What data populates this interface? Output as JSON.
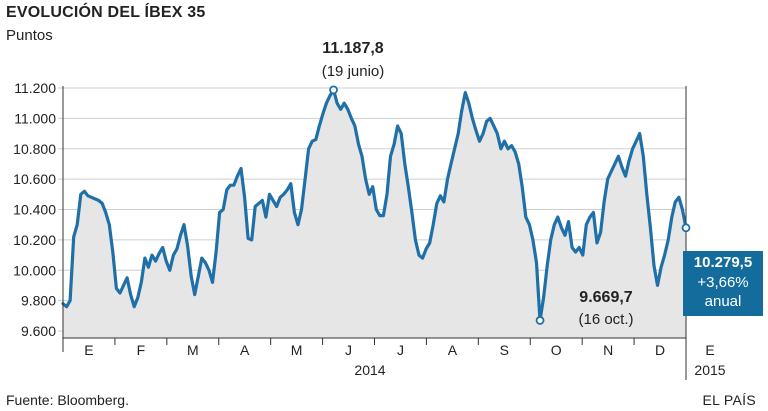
{
  "header": {
    "title": "EVOLUCIÓN DEL ÍBEX 35",
    "subtitle": "Puntos"
  },
  "footer": {
    "source": "Fuente: Bloomberg.",
    "credit": "EL PAÍS"
  },
  "colors": {
    "line": "#1f6fa8",
    "area": "#e6e6e6",
    "badge": "#136c9c",
    "grid": "#cfcfcf"
  },
  "chart_data": {
    "type": "area",
    "title": "EVOLUCIÓN DEL ÍBEX 35",
    "subtitle": "Puntos",
    "ylim": [
      9600,
      11200
    ],
    "yticks": [
      "9.600",
      "9.800",
      "10.000",
      "10.200",
      "10.400",
      "10.600",
      "10.800",
      "11.000",
      "11.200"
    ],
    "ytick_values": [
      9600,
      9800,
      10000,
      10200,
      10400,
      10600,
      10800,
      11000,
      11200
    ],
    "xticks": [
      "E",
      "F",
      "M",
      "A",
      "M",
      "J",
      "J",
      "A",
      "S",
      "O",
      "N",
      "D",
      "E"
    ],
    "year_labels": [
      "2014",
      "2015"
    ],
    "grid": true,
    "series": [
      {
        "values": [
          9780,
          9760,
          9800,
          10220,
          10300,
          10500,
          10520,
          10490,
          10480,
          10470,
          10460,
          10440,
          10380,
          10300,
          10120,
          9880,
          9850,
          9900,
          9950,
          9840,
          9760,
          9820,
          9920,
          10080,
          10020,
          10100,
          10060,
          10110,
          10150,
          10060,
          10000,
          10100,
          10140,
          10230,
          10300,
          10160,
          9960,
          9840,
          9960,
          10080,
          10050,
          10000,
          9920,
          10120,
          10380,
          10400,
          10530,
          10560,
          10560,
          10620,
          10670,
          10480,
          10210,
          10200,
          10420,
          10440,
          10460,
          10350,
          10500,
          10460,
          10420,
          10480,
          10500,
          10530,
          10570,
          10380,
          10300,
          10400,
          10600,
          10800,
          10850,
          10860,
          10950,
          11030,
          11100,
          11150,
          11187.8,
          11100,
          11060,
          11100,
          11060,
          11000,
          10950,
          10830,
          10750,
          10600,
          10500,
          10550,
          10400,
          10360,
          10360,
          10500,
          10750,
          10830,
          10950,
          10900,
          10700,
          10550,
          10380,
          10200,
          10100,
          10080,
          10140,
          10180,
          10300,
          10440,
          10490,
          10450,
          10600,
          10700,
          10800,
          10900,
          11050,
          11170,
          11100,
          11000,
          10920,
          10850,
          10900,
          10980,
          11000,
          10950,
          10900,
          10800,
          10850,
          10800,
          10820,
          10780,
          10700,
          10550,
          10350,
          10300,
          10200,
          10050,
          9669.7,
          9820,
          10030,
          10200,
          10300,
          10350,
          10280,
          10230,
          10320,
          10150,
          10120,
          10150,
          10100,
          10300,
          10350,
          10380,
          10180,
          10250,
          10450,
          10600,
          10650,
          10700,
          10750,
          10680,
          10620,
          10720,
          10800,
          10850,
          10900,
          10750,
          10500,
          10280,
          10030,
          9900,
          10020,
          10100,
          10200,
          10350,
          10450,
          10480,
          10400,
          10279.5
        ]
      }
    ],
    "annotations": [
      {
        "label": "11.187,8",
        "sublabel": "(19 junio)",
        "value": 11187.8
      },
      {
        "label": "9.669,7",
        "sublabel": "(16 oct.)",
        "value": 9669.7
      },
      {
        "label": "10.279,5",
        "sublabel": "+3,66%",
        "note": "anual",
        "value": 10279.5
      }
    ]
  }
}
